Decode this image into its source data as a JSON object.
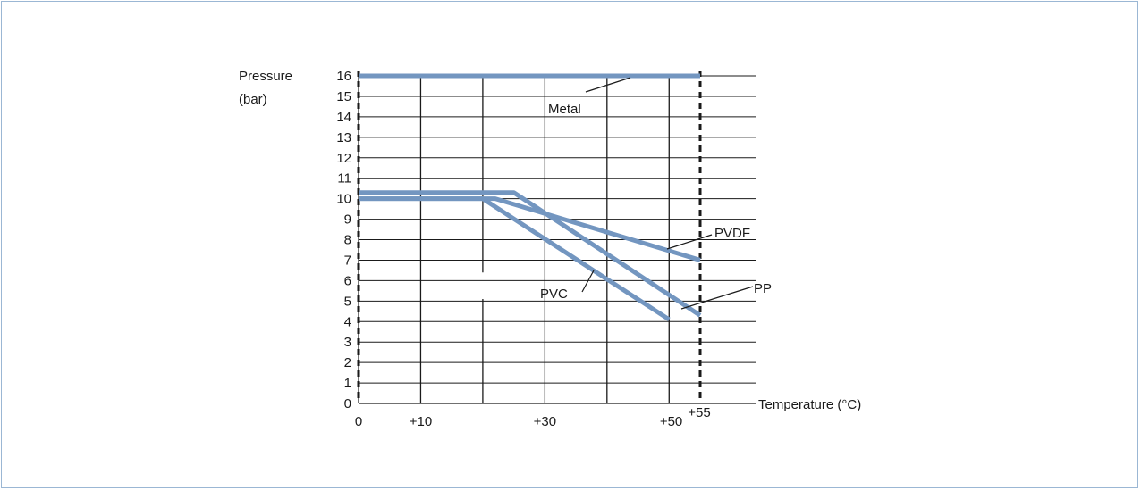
{
  "chart_data": {
    "type": "line",
    "ylabel_line1": "Pressure",
    "ylabel_line2": "(bar)",
    "xlabel": "Temperature (°C)",
    "xlim": [
      0,
      55
    ],
    "ylim": [
      0,
      16
    ],
    "x_ticks": [
      {
        "value": 0,
        "label": "0"
      },
      {
        "value": 10,
        "label": "+10"
      },
      {
        "value": 30,
        "label": "+30"
      },
      {
        "value": 50,
        "label": "+50"
      },
      {
        "value": 55,
        "label": "+55"
      }
    ],
    "y_ticks": [
      0,
      1,
      2,
      3,
      4,
      5,
      6,
      7,
      8,
      9,
      10,
      11,
      12,
      13,
      14,
      15,
      16
    ],
    "y_tick_labels": [
      "0",
      "1",
      "2",
      "3",
      "4",
      "5",
      "6",
      "7",
      "8",
      "9",
      "10",
      "11",
      "12",
      "13",
      "14",
      "15",
      "16"
    ],
    "x_gridlines": [
      10,
      20,
      30,
      40,
      50
    ],
    "boundary_lines": [
      0,
      55
    ],
    "grid": true,
    "series_color": "#7396c0",
    "series": [
      {
        "name": "Metal",
        "x": [
          0,
          55
        ],
        "y": [
          16,
          16
        ]
      },
      {
        "name": "PVDF",
        "x": [
          0,
          22,
          55
        ],
        "y": [
          10,
          10,
          7
        ]
      },
      {
        "name": "PP",
        "x": [
          0,
          25,
          55
        ],
        "y": [
          10.3,
          10.3,
          4.3
        ]
      },
      {
        "name": "PVC",
        "x": [
          0,
          20,
          50
        ],
        "y": [
          10,
          10,
          4.1
        ]
      }
    ],
    "annotations": [
      {
        "text": "Metal",
        "series": "Metal"
      },
      {
        "text": "PVDF",
        "series": "PVDF"
      },
      {
        "text": "PP",
        "series": "PP"
      },
      {
        "text": "PVC",
        "series": "PVC"
      }
    ]
  }
}
